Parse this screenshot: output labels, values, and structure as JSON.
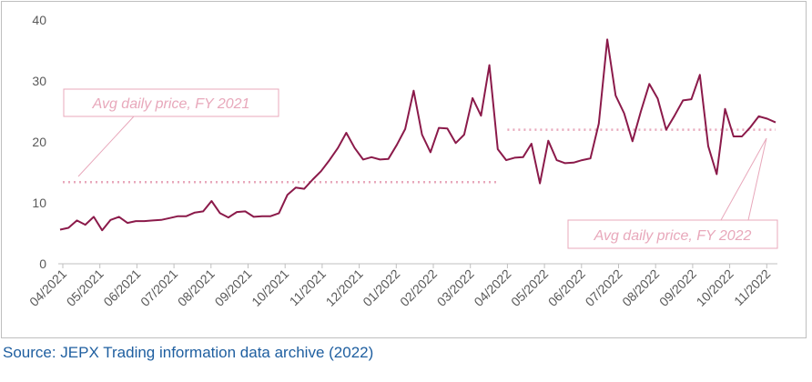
{
  "source_text": "Source: JEPX Trading information data archive (2022)",
  "chart_data": {
    "type": "line",
    "title": "",
    "xlabel": "",
    "ylabel": "",
    "ylim": [
      0,
      40
    ],
    "yticks": [
      0,
      10,
      20,
      30,
      40
    ],
    "grid": false,
    "x_ticks": [
      "04/2021",
      "05/2021",
      "06/2021",
      "07/2021",
      "08/2021",
      "09/2021",
      "10/2021",
      "11/2021",
      "12/2021",
      "01/2022",
      "02/2022",
      "03/2022",
      "04/2022",
      "05/2022",
      "06/2022",
      "07/2022",
      "08/2022",
      "09/2022",
      "10/2022",
      "11/2022"
    ],
    "series_color": "#8b1a4a",
    "ref_color": "#e8a8bb",
    "series": [
      {
        "values": [
          5.6,
          5.9,
          7.1,
          6.4,
          7.7,
          5.5,
          7.2,
          7.7,
          6.7,
          7.0,
          7.0,
          7.1,
          7.2,
          7.5,
          7.8,
          7.8,
          8.4,
          8.6,
          10.3,
          8.3,
          7.6,
          8.5,
          8.6,
          7.7,
          7.8,
          7.8,
          8.3,
          11.3,
          12.5,
          12.3,
          13.8,
          15.2,
          17.0,
          19.0,
          21.5,
          19.0,
          17.1,
          17.5,
          17.1,
          17.2,
          19.5,
          22.1,
          28.4,
          21.2,
          18.3,
          22.3,
          22.2,
          19.8,
          21.2,
          27.2,
          24.3,
          32.6,
          18.8,
          17.0,
          17.4,
          17.5,
          19.7,
          13.2,
          20.2,
          17.0,
          16.5,
          16.6,
          17.0,
          17.3,
          23.0,
          36.8,
          27.6,
          24.7,
          20.1,
          25.0,
          29.5,
          27.1,
          22.0,
          24.3,
          26.8,
          27.0,
          31.0,
          19.3,
          14.7,
          25.4,
          20.9,
          20.9,
          22.4,
          24.2,
          23.8,
          23.2
        ]
      }
    ],
    "reference_lines": [
      {
        "label": "Avg daily price, FY 2021",
        "value": 13.4,
        "from": "04/2021",
        "to": "04/2022"
      },
      {
        "label": "Avg daily price, FY 2022",
        "value": 22.0,
        "from": "04/2022",
        "to": "11/2022"
      }
    ]
  }
}
